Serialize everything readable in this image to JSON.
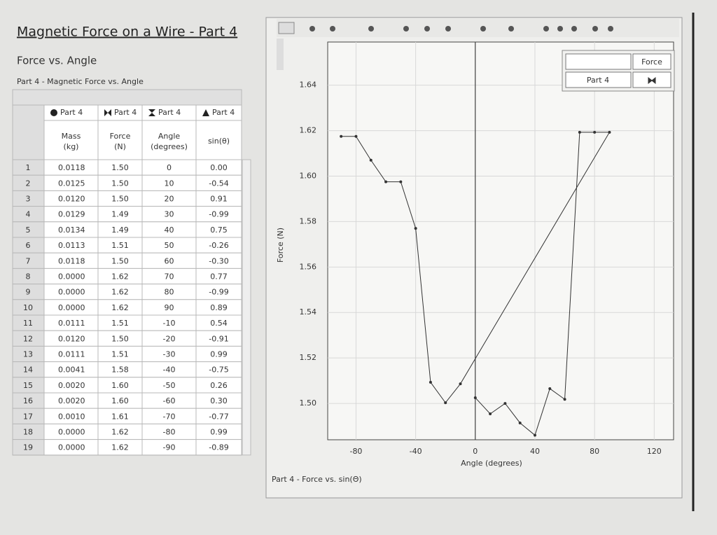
{
  "header": {
    "title": "Magnetic Force on a Wire - Part 4",
    "subtitle": "Force vs. Angle",
    "table_caption": "Part 4 - Magnetic Force vs. Angle"
  },
  "table": {
    "groups": [
      "Part 4",
      "Part 4",
      "Part 4",
      "Part 4"
    ],
    "columns": [
      {
        "name": "Mass",
        "unit": "(kg)"
      },
      {
        "name": "Force",
        "unit": "(N)"
      },
      {
        "name": "Angle",
        "unit": "(degrees)"
      },
      {
        "name": "sin(θ)",
        "unit": ""
      }
    ],
    "rows": [
      [
        "1",
        "0.0118",
        "1.50",
        "0",
        "0.00"
      ],
      [
        "2",
        "0.0125",
        "1.50",
        "10",
        "-0.54"
      ],
      [
        "3",
        "0.0120",
        "1.50",
        "20",
        "0.91"
      ],
      [
        "4",
        "0.0129",
        "1.49",
        "30",
        "-0.99"
      ],
      [
        "5",
        "0.0134",
        "1.49",
        "40",
        "0.75"
      ],
      [
        "6",
        "0.0113",
        "1.51",
        "50",
        "-0.26"
      ],
      [
        "7",
        "0.0118",
        "1.50",
        "60",
        "-0.30"
      ],
      [
        "8",
        "0.0000",
        "1.62",
        "70",
        "0.77"
      ],
      [
        "9",
        "0.0000",
        "1.62",
        "80",
        "-0.99"
      ],
      [
        "10",
        "0.0000",
        "1.62",
        "90",
        "0.89"
      ],
      [
        "11",
        "0.0111",
        "1.51",
        "-10",
        "0.54"
      ],
      [
        "12",
        "0.0120",
        "1.50",
        "-20",
        "-0.91"
      ],
      [
        "13",
        "0.0111",
        "1.51",
        "-30",
        "0.99"
      ],
      [
        "14",
        "0.0041",
        "1.58",
        "-40",
        "-0.75"
      ],
      [
        "15",
        "0.0020",
        "1.60",
        "-50",
        "0.26"
      ],
      [
        "16",
        "0.0020",
        "1.60",
        "-60",
        "0.30"
      ],
      [
        "17",
        "0.0010",
        "1.61",
        "-70",
        "-0.77"
      ],
      [
        "18",
        "0.0000",
        "1.62",
        "-80",
        "0.99"
      ],
      [
        "19",
        "0.0000",
        "1.62",
        "-90",
        "-0.89"
      ]
    ]
  },
  "chart_data": {
    "type": "line",
    "x_label": "Angle (degrees)",
    "y_label": "Force (N)",
    "caption": "Part 4 - Force vs. sin(Θ)",
    "legend_title": "Force",
    "x": [
      0,
      10,
      20,
      30,
      40,
      50,
      60,
      70,
      80,
      90,
      -10,
      -20,
      -30,
      -40,
      -50,
      -60,
      -70,
      -80,
      -90
    ],
    "series": [
      {
        "name": "Part 4",
        "color": "#333333",
        "values": [
          1.5025,
          1.4954,
          1.5,
          1.4914,
          1.486,
          1.5065,
          1.5018,
          1.6193,
          1.6193,
          1.6193,
          1.5086,
          1.5003,
          1.5093,
          1.577,
          1.5975,
          1.5975,
          1.607,
          1.6175,
          1.6175
        ]
      }
    ],
    "xlim": [
      -99,
      133
    ],
    "xticks": [
      -80,
      -40,
      0,
      40,
      80,
      120
    ],
    "ylim": [
      1.484,
      1.659
    ],
    "yticks": [
      {
        "value": 1.5,
        "label": "1.50"
      },
      1.52,
      1.54,
      1.56,
      1.58,
      {
        "value": 1.6,
        "label": "1.60"
      },
      1.62,
      1.64
    ],
    "grid": true
  }
}
